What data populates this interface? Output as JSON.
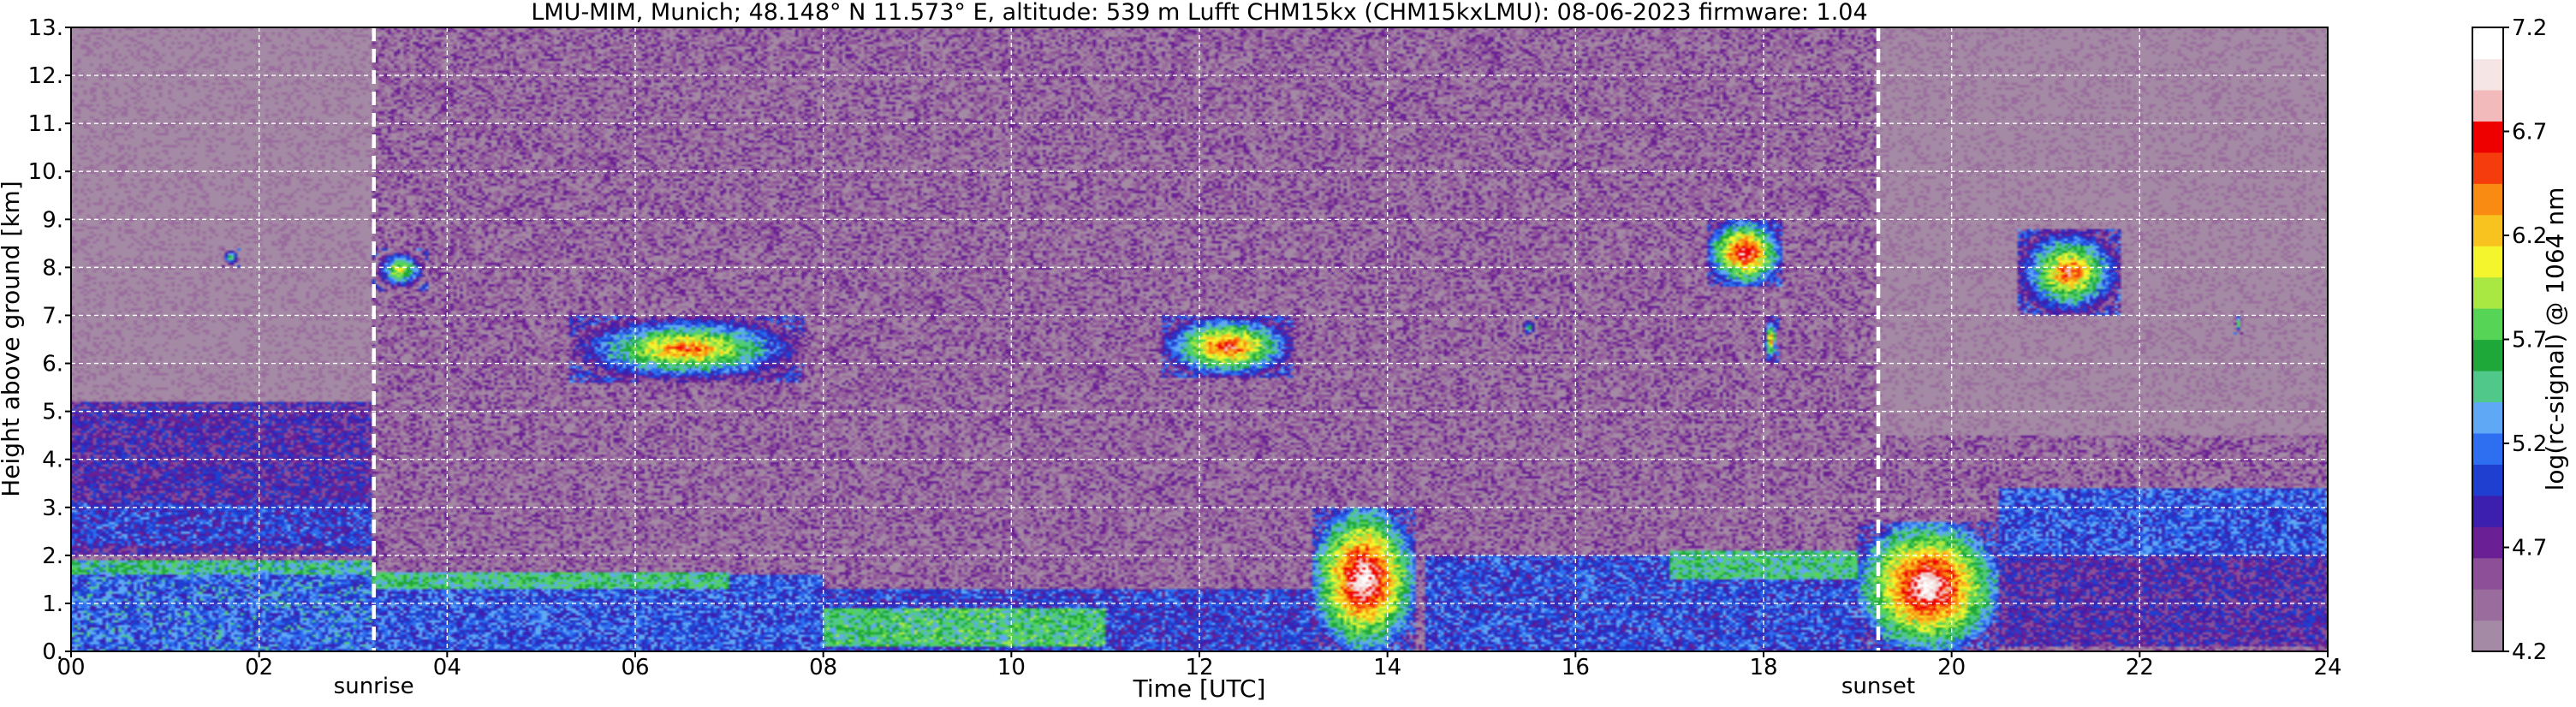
{
  "chart_data": {
    "type": "heatmap",
    "title": "LMU-MIM, Munich; 48.148° N 11.573° E, altitude: 539 m    Lufft CHM15kx (CHM15kxLMU): 08-06-2023    firmware: 1.04",
    "xlabel": "Time [UTC]",
    "ylabel": "Height above ground [km]",
    "xlim": [
      0,
      24
    ],
    "ylim": [
      0,
      13
    ],
    "x_ticks": [
      "00",
      "02",
      "04",
      "06",
      "08",
      "10",
      "12",
      "14",
      "16",
      "18",
      "20",
      "22",
      "24"
    ],
    "x_tick_values": [
      0,
      2,
      4,
      6,
      8,
      10,
      12,
      14,
      16,
      18,
      20,
      22,
      24
    ],
    "y_ticks": [
      "0.",
      "1.",
      "2.",
      "3.",
      "4.",
      "5.",
      "6.",
      "7.",
      "8.",
      "9.",
      "10.",
      "11.",
      "12.",
      "13."
    ],
    "y_tick_values": [
      0,
      1,
      2,
      3,
      4,
      5,
      6,
      7,
      8,
      9,
      10,
      11,
      12,
      13
    ],
    "grid": true,
    "colorbar": {
      "label": "log(rc-signal) @ 1064 nm",
      "range": [
        4.2,
        7.2
      ],
      "ticks": [
        "4.2",
        "4.7",
        "5.2",
        "5.7",
        "6.2",
        "6.7",
        "7.2"
      ],
      "tick_values": [
        4.2,
        4.7,
        5.2,
        5.7,
        6.2,
        6.7,
        7.2
      ],
      "colors": [
        "#a48aa4",
        "#9a6c9e",
        "#8c4f98",
        "#6a1f94",
        "#3d1fb0",
        "#1f3fd0",
        "#2e6ef0",
        "#5fa8f5",
        "#4fc88a",
        "#1ea83a",
        "#55d455",
        "#a9e842",
        "#f5f52e",
        "#f9c31f",
        "#f98a12",
        "#f53c0d",
        "#ee0000",
        "#f2baba",
        "#f5e5e5",
        "#ffffff"
      ]
    },
    "annotations": [
      {
        "label": "sunrise",
        "x": 3.22
      },
      {
        "label": "sunset",
        "x": 19.22
      }
    ],
    "features": [
      {
        "kind": "noise",
        "x0": 0,
        "x1": 24,
        "y0": 0,
        "y1": 13,
        "value": 4.45
      },
      {
        "kind": "night-dark",
        "x0": 0,
        "x1": 3.2,
        "y0": 5.2,
        "y1": 13,
        "value": 4.2
      },
      {
        "kind": "night-dark",
        "x0": 19.2,
        "x1": 24,
        "y0": 4.5,
        "y1": 13,
        "value": 4.2
      },
      {
        "kind": "residual-layer",
        "x0": 0,
        "x1": 3.2,
        "y0": 2.0,
        "y1": 5.2,
        "value": 4.8
      },
      {
        "kind": "residual-layer",
        "x0": 0,
        "x1": 3.2,
        "y0": 2.2,
        "y1": 3.1,
        "value": 5.0
      },
      {
        "kind": "boundary-layer",
        "x0": 0,
        "x1": 3.2,
        "y0": 0,
        "y1": 1.9,
        "value": 5.15
      },
      {
        "kind": "boundary-layer-top",
        "x0": 0,
        "x1": 3.2,
        "y0": 1.6,
        "y1": 1.9,
        "value": 5.5
      },
      {
        "kind": "boundary-layer",
        "x0": 3.2,
        "x1": 8,
        "y0": 0,
        "y1": 1.6,
        "value": 5.1
      },
      {
        "kind": "boundary-layer-top",
        "x0": 3.2,
        "x1": 7,
        "y0": 1.3,
        "y1": 1.65,
        "value": 5.55
      },
      {
        "kind": "aerosol",
        "x0": 8,
        "x1": 13.2,
        "y0": 0,
        "y1": 1.3,
        "value": 5.0
      },
      {
        "kind": "aerosol",
        "x0": 8,
        "x1": 11,
        "y0": 0.1,
        "y1": 0.9,
        "value": 5.6
      },
      {
        "kind": "boundary-layer",
        "x0": 14.4,
        "x1": 19,
        "y0": 0,
        "y1": 2.0,
        "value": 5.05
      },
      {
        "kind": "boundary-layer-top",
        "x0": 17,
        "x1": 19,
        "y0": 1.5,
        "y1": 2.1,
        "value": 5.55
      },
      {
        "kind": "residual-layer",
        "x0": 20.5,
        "x1": 24,
        "y0": 0.1,
        "y1": 2.0,
        "value": 4.8
      },
      {
        "kind": "boundary-layer-top",
        "x0": 20.5,
        "x1": 24,
        "y0": 2.0,
        "y1": 3.4,
        "value": 5.1
      },
      {
        "kind": "cloud",
        "x0": 13.2,
        "x1": 14.3,
        "y0": 0,
        "y1": 3.0,
        "value": 7.2
      },
      {
        "kind": "cloud",
        "x0": 19.0,
        "x1": 20.5,
        "y0": 0,
        "y1": 2.7,
        "value": 7.2
      },
      {
        "kind": "cloud",
        "x0": 5.3,
        "x1": 7.8,
        "y0": 5.6,
        "y1": 7.0,
        "value": 6.6
      },
      {
        "kind": "cloud",
        "x0": 11.6,
        "x1": 13.0,
        "y0": 5.7,
        "y1": 7.0,
        "value": 6.8
      },
      {
        "kind": "cloud",
        "x0": 3.2,
        "x1": 3.8,
        "y0": 7.5,
        "y1": 8.4,
        "value": 6.3
      },
      {
        "kind": "cloud",
        "x0": 1.6,
        "x1": 1.8,
        "y0": 8.0,
        "y1": 8.4,
        "value": 6.1
      },
      {
        "kind": "cloud",
        "x0": 17.4,
        "x1": 18.2,
        "y0": 7.6,
        "y1": 9.0,
        "value": 7.0
      },
      {
        "kind": "cloud",
        "x0": 18.0,
        "x1": 18.15,
        "y0": 6.0,
        "y1": 7.0,
        "value": 6.6
      },
      {
        "kind": "cloud",
        "x0": 20.7,
        "x1": 21.8,
        "y0": 7.0,
        "y1": 8.8,
        "value": 6.7
      },
      {
        "kind": "cloud",
        "x0": 23.0,
        "x1": 23.1,
        "y0": 6.6,
        "y1": 7.1,
        "value": 5.9
      },
      {
        "kind": "cloud",
        "x0": 15.4,
        "x1": 15.6,
        "y0": 6.5,
        "y1": 7.0,
        "value": 5.8
      }
    ]
  }
}
